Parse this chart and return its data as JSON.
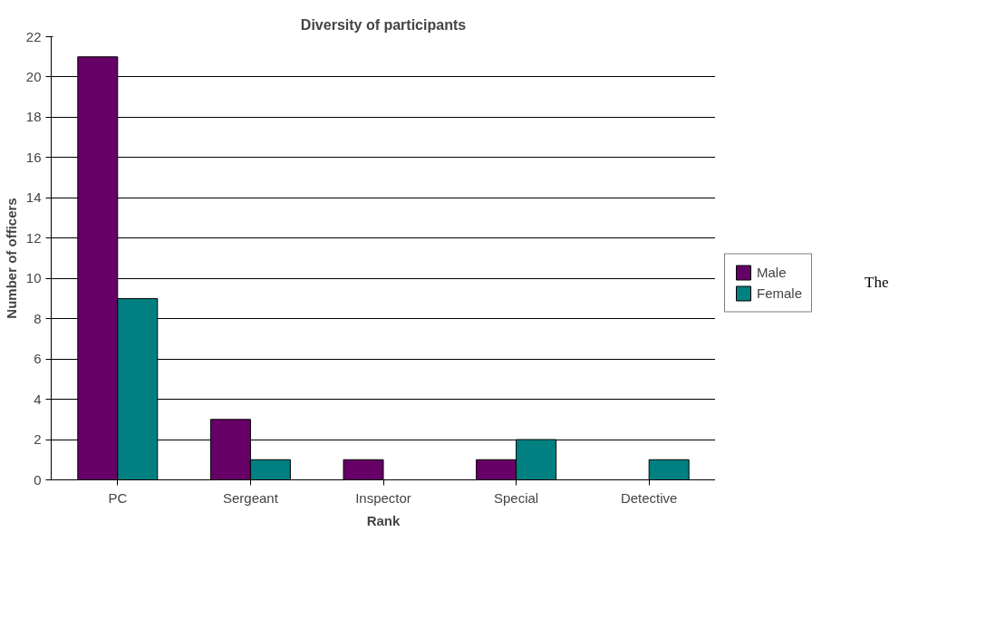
{
  "chart_data": {
    "type": "bar",
    "title": "Diversity of participants",
    "xlabel": "Rank",
    "ylabel": "Number of officers",
    "categories": [
      "PC",
      "Sergeant",
      "Inspector",
      "Special",
      "Detective"
    ],
    "series": [
      {
        "name": "Male",
        "color": "#660066",
        "values": [
          21,
          3,
          1,
          1,
          0
        ]
      },
      {
        "name": "Female",
        "color": "#008080",
        "values": [
          9,
          1,
          0,
          2,
          1
        ]
      }
    ],
    "ylim": [
      0,
      22
    ],
    "yticks": [
      0,
      2,
      4,
      6,
      8,
      10,
      12,
      14,
      16,
      18,
      20,
      22
    ],
    "grid": "y",
    "legend": "right",
    "annotations": [
      "The"
    ]
  }
}
